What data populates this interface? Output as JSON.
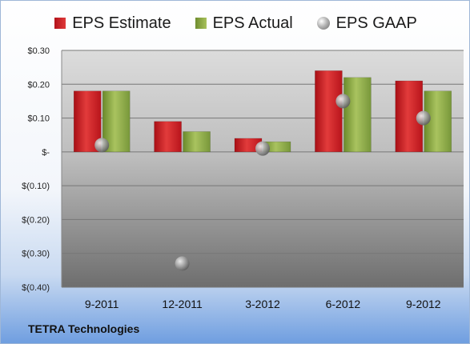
{
  "chart_data": {
    "type": "bar",
    "categories": [
      "9-2011",
      "12-2011",
      "3-2012",
      "6-2012",
      "9-2012"
    ],
    "series": [
      {
        "name": "EPS Estimate",
        "kind": "bar",
        "color": "#c8151c",
        "values": [
          0.18,
          0.09,
          0.04,
          0.24,
          0.21
        ]
      },
      {
        "name": "EPS Actual",
        "kind": "bar",
        "color": "#8ead44",
        "values": [
          0.18,
          0.06,
          0.03,
          0.22,
          0.18
        ]
      },
      {
        "name": "EPS GAAP",
        "kind": "marker",
        "color": "#9a9a9a",
        "values": [
          0.02,
          -0.33,
          0.01,
          0.15,
          0.1
        ]
      }
    ],
    "yticks": [
      {
        "value": 0.3,
        "label": "$0.30"
      },
      {
        "value": 0.2,
        "label": "$0.20"
      },
      {
        "value": 0.1,
        "label": "$0.10"
      },
      {
        "value": 0.0,
        "label": "$-"
      },
      {
        "value": -0.1,
        "label": "$(0.10)"
      },
      {
        "value": -0.2,
        "label": "$(0.20)"
      },
      {
        "value": -0.3,
        "label": "$(0.30)"
      },
      {
        "value": -0.4,
        "label": "$(0.40)"
      }
    ],
    "ylim": [
      -0.4,
      0.3
    ],
    "grid": true,
    "legend_position": "top-center",
    "footer": "TETRA Technologies"
  }
}
